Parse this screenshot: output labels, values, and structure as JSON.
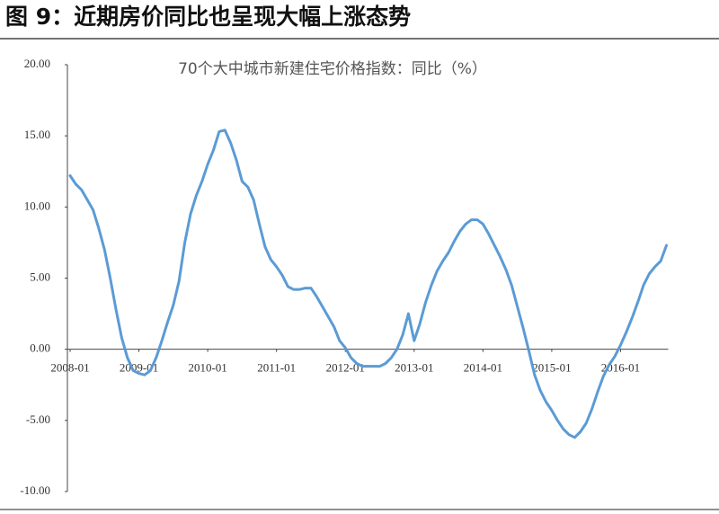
{
  "chart_data": {
    "type": "line",
    "title": "图 9：近期房价同比也呈现大幅上涨态势",
    "categories": [
      "2008-01",
      null,
      null,
      null,
      null,
      null,
      null,
      null,
      null,
      null,
      null,
      null,
      "2009-01",
      null,
      null,
      null,
      null,
      null,
      null,
      null,
      null,
      null,
      null,
      null,
      "2010-01",
      null,
      null,
      null,
      null,
      null,
      null,
      null,
      null,
      null,
      null,
      null,
      "2011-01",
      null,
      null,
      null,
      null,
      null,
      null,
      null,
      null,
      null,
      null,
      null,
      "2012-01",
      null,
      null,
      null,
      null,
      null,
      null,
      null,
      null,
      null,
      null,
      null,
      "2013-01",
      null,
      null,
      null,
      null,
      null,
      null,
      null,
      null,
      null,
      null,
      null,
      "2014-01",
      null,
      null,
      null,
      null,
      null,
      null,
      null,
      null,
      null,
      null,
      null,
      "2015-01",
      null,
      null,
      null,
      null,
      null,
      null,
      null,
      null,
      null,
      null,
      null,
      "2016-01",
      null,
      null,
      null,
      null,
      null,
      null,
      null,
      null
    ],
    "series": [
      {
        "name": "70个大中城市新建住宅价格指数：同比（%）",
        "color": "#5b9bd5",
        "values": [
          12.2,
          11.6,
          11.2,
          10.5,
          9.8,
          8.5,
          7.0,
          5.0,
          2.8,
          0.8,
          -0.6,
          -1.5,
          -1.7,
          -1.8,
          -1.5,
          -0.6,
          0.6,
          1.9,
          3.1,
          4.8,
          7.5,
          9.5,
          10.8,
          11.8,
          13.0,
          14.0,
          15.3,
          15.4,
          14.5,
          13.3,
          11.8,
          11.4,
          10.5,
          8.8,
          7.2,
          6.3,
          5.8,
          5.2,
          4.4,
          4.2,
          4.2,
          4.3,
          4.3,
          3.7,
          3.0,
          2.3,
          1.6,
          0.6,
          0.1,
          -0.6,
          -1.0,
          -1.2,
          -1.2,
          -1.2,
          -1.2,
          -1.0,
          -0.6,
          0.0,
          1.0,
          2.5,
          0.6,
          1.8,
          3.3,
          4.5,
          5.5,
          6.2,
          6.8,
          7.6,
          8.3,
          8.8,
          9.1,
          9.1,
          8.8,
          8.1,
          7.3,
          6.5,
          5.6,
          4.5,
          3.0,
          1.5,
          -0.1,
          -1.8,
          -2.9,
          -3.7,
          -4.3,
          -5.0,
          -5.6,
          -6.0,
          -6.2,
          -5.8,
          -5.2,
          -4.2,
          -3.0,
          -1.9,
          -1.1,
          -0.5,
          0.3,
          1.2,
          2.2,
          3.3,
          4.5,
          5.3,
          5.8,
          6.2,
          7.3
        ]
      }
    ],
    "ylim": [
      -10,
      20
    ],
    "yticks": [
      {
        "value": -10,
        "label": "-10.00"
      },
      {
        "value": -5,
        "label": "-5.00"
      },
      {
        "value": 0,
        "label": "0.00"
      },
      {
        "value": 5,
        "label": "5.00"
      },
      {
        "value": 10,
        "label": "10.00"
      },
      {
        "value": 15,
        "label": "15.00"
      },
      {
        "value": 20,
        "label": "20.00"
      }
    ]
  }
}
